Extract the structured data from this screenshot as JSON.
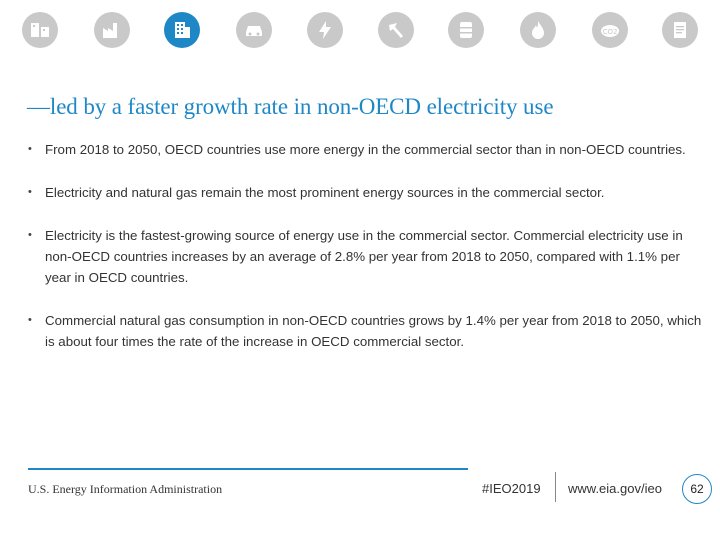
{
  "icons": [
    {
      "name": "all-sectors-icon",
      "active": false
    },
    {
      "name": "industrial-icon",
      "active": false
    },
    {
      "name": "commercial-building-icon",
      "active": true
    },
    {
      "name": "transportation-icon",
      "active": false
    },
    {
      "name": "electricity-icon",
      "active": false
    },
    {
      "name": "coal-icon",
      "active": false
    },
    {
      "name": "oil-barrel-icon",
      "active": false
    },
    {
      "name": "natural-gas-flame-icon",
      "active": false
    },
    {
      "name": "co2-emissions-icon",
      "active": false
    },
    {
      "name": "report-document-icon",
      "active": false
    }
  ],
  "title": "—led by a faster growth rate in non-OECD electricity use",
  "bullet_symbol": "•",
  "bullets": [
    "From 2018 to 2050, OECD countries use more energy in the commercial sector than in non-OECD countries.",
    "Electricity and natural gas remain the most prominent energy sources in the commercial sector.",
    "Electricity is the fastest-growing source of energy use in the commercial sector. Commercial electricity use in non-OECD countries increases by an average of 2.8% per year from 2018 to 2050, compared with 1.1% per year in OECD countries.",
    "Commercial natural gas consumption in non-OECD countries grows by 1.4% per year from 2018 to 2050, which is about four times the rate of the increase in OECD commercial sector."
  ],
  "footer": {
    "agency": "U.S. Energy Information Administration",
    "hashtag": "#IEO2019",
    "url": "www.eia.gov/ieo",
    "page_number": "62"
  },
  "colors": {
    "accent": "#1e88c7",
    "icon_inactive": "#c9c9c9"
  }
}
